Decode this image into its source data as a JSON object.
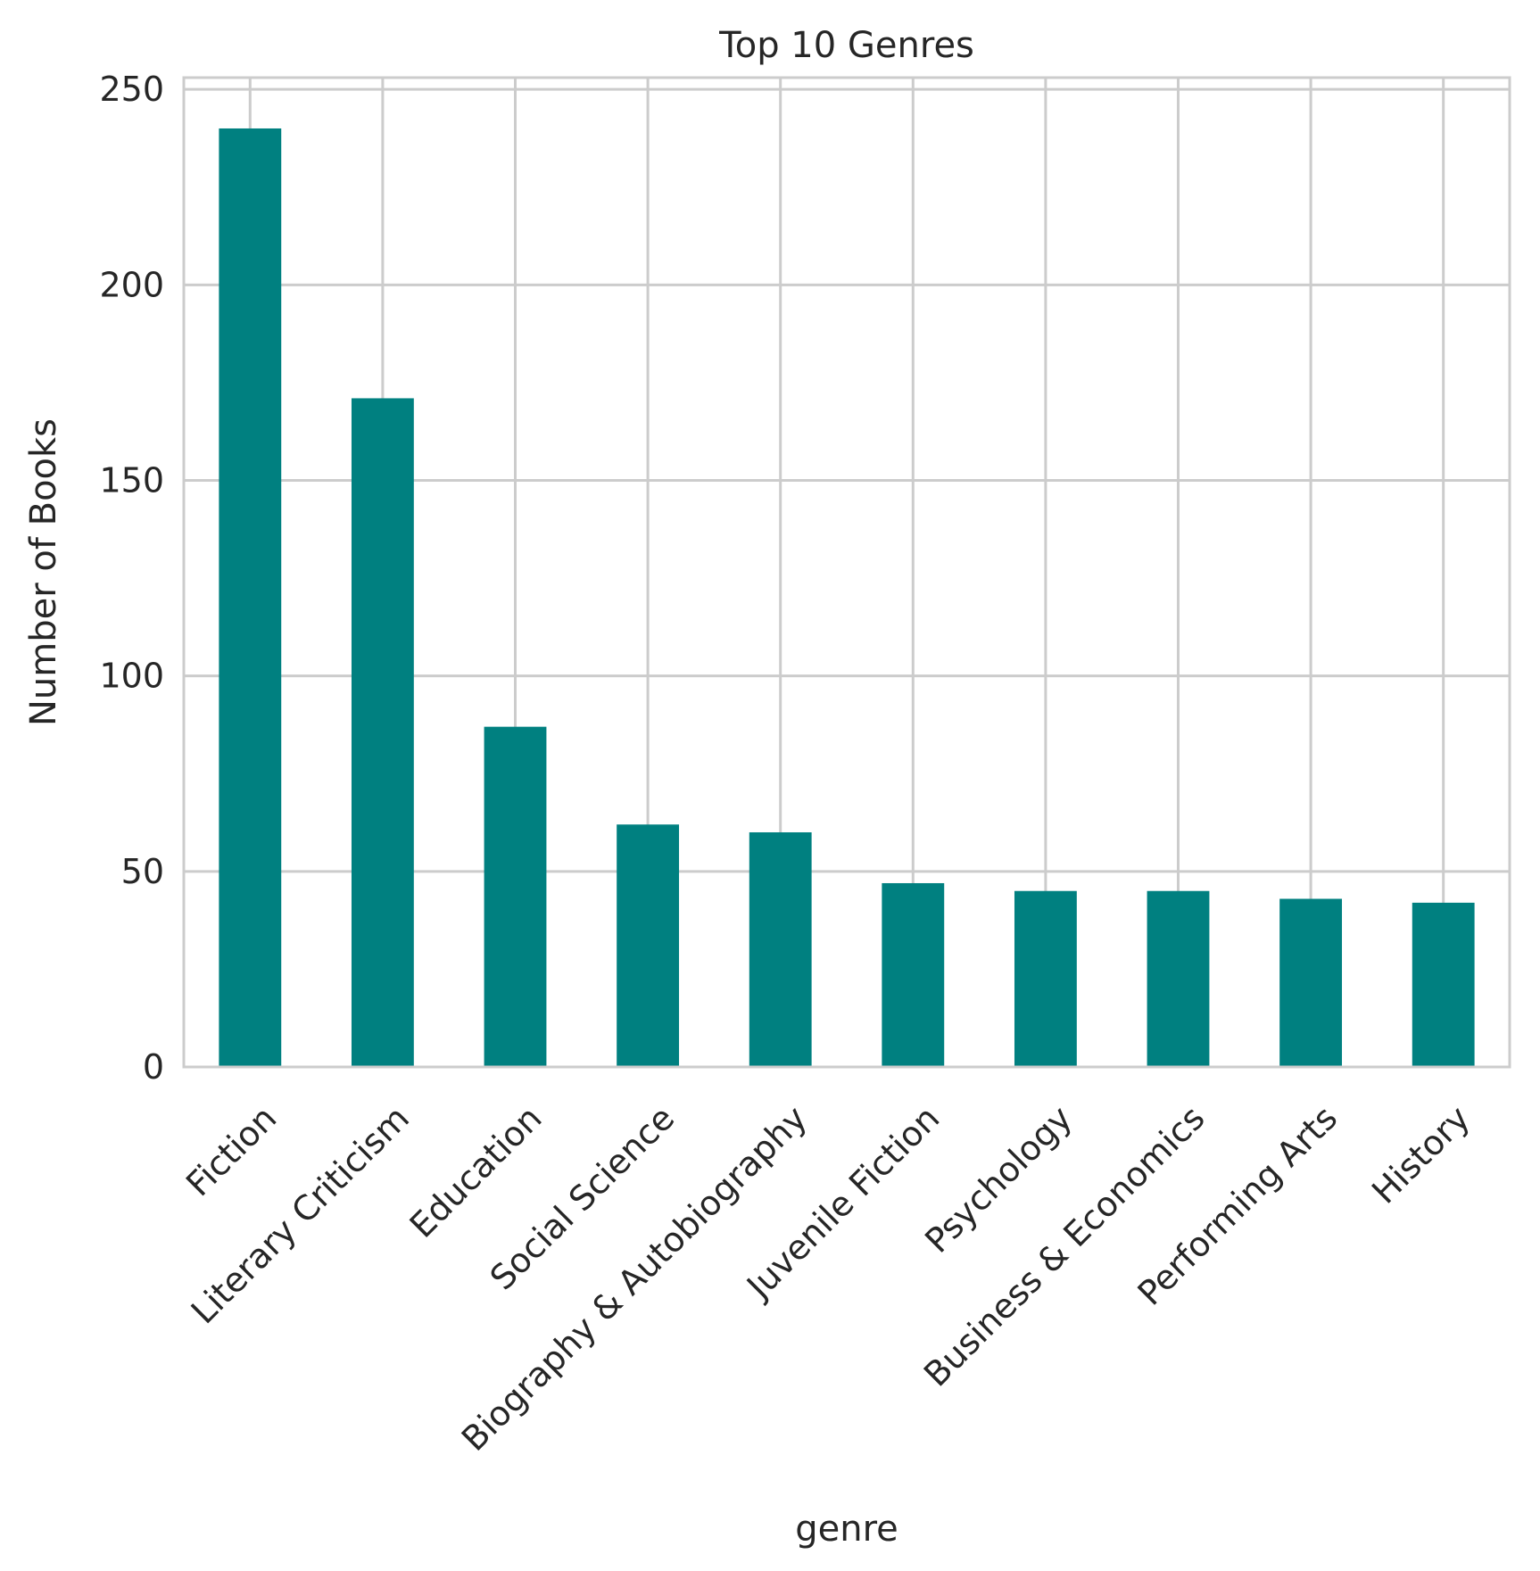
{
  "chart_data": {
    "type": "bar",
    "title": "Top 10 Genres",
    "xlabel": "genre",
    "ylabel": "Number of Books",
    "categories": [
      "Fiction",
      "Literary Criticism",
      "Education",
      "Social Science",
      "Biography & Autobiography",
      "Juvenile Fiction",
      "Psychology",
      "Business & Economics",
      "Performing Arts",
      "History"
    ],
    "values": [
      240,
      171,
      87,
      62,
      60,
      47,
      45,
      45,
      43,
      42
    ],
    "ylim": [
      0,
      253
    ],
    "yticks": [
      0,
      50,
      100,
      150,
      200,
      250
    ],
    "grid": true,
    "bar_color": "#008080",
    "grid_color": "#cccccc",
    "x_tick_rotation": 45
  }
}
